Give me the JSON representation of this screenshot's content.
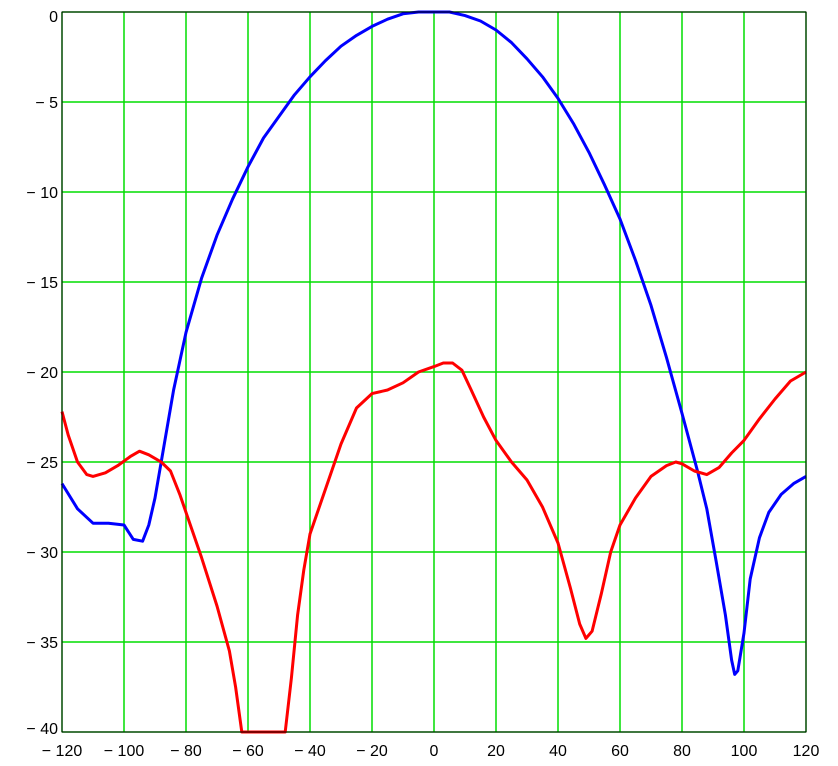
{
  "chart_data": {
    "type": "line",
    "title": "",
    "xlabel": "",
    "ylabel": "",
    "xlim": [
      -120,
      120
    ],
    "ylim": [
      -40,
      0
    ],
    "grid": true,
    "grid_color": "#00dd00",
    "x_ticks": [
      -120,
      -100,
      -80,
      -60,
      -40,
      -20,
      0,
      20,
      40,
      60,
      80,
      100,
      120
    ],
    "x_tick_labels": [
      "− 120",
      "− 100",
      "− 80",
      "− 60",
      "− 40",
      "− 20",
      "0",
      "20",
      "40",
      "60",
      "80",
      "100",
      "120"
    ],
    "y_ticks": [
      0,
      -5,
      -10,
      -15,
      -20,
      -25,
      -30,
      -35,
      -40
    ],
    "y_tick_labels": [
      "0",
      "− 5",
      "− 10",
      "− 15",
      "− 20",
      "− 25",
      "− 30",
      "− 35",
      "− 40"
    ],
    "series": [
      {
        "color": "#0000ff",
        "points": [
          [
            -120,
            -26.2
          ],
          [
            -115,
            -27.6
          ],
          [
            -110,
            -28.4
          ],
          [
            -105,
            -28.4
          ],
          [
            -100,
            -28.5
          ],
          [
            -97,
            -29.3
          ],
          [
            -94,
            -29.4
          ],
          [
            -92,
            -28.5
          ],
          [
            -90,
            -27.0
          ],
          [
            -88,
            -25.0
          ],
          [
            -86,
            -23.0
          ],
          [
            -84,
            -21.0
          ],
          [
            -80,
            -17.8
          ],
          [
            -75,
            -14.8
          ],
          [
            -70,
            -12.4
          ],
          [
            -65,
            -10.4
          ],
          [
            -60,
            -8.6
          ],
          [
            -55,
            -7.0
          ],
          [
            -50,
            -5.8
          ],
          [
            -45,
            -4.6
          ],
          [
            -40,
            -3.6
          ],
          [
            -35,
            -2.7
          ],
          [
            -30,
            -1.9
          ],
          [
            -25,
            -1.3
          ],
          [
            -20,
            -0.8
          ],
          [
            -15,
            -0.4
          ],
          [
            -10,
            -0.1
          ],
          [
            -5,
            0
          ],
          [
            0,
            0
          ],
          [
            5,
            0
          ],
          [
            10,
            -0.2
          ],
          [
            15,
            -0.5
          ],
          [
            20,
            -1.0
          ],
          [
            25,
            -1.7
          ],
          [
            30,
            -2.6
          ],
          [
            35,
            -3.6
          ],
          [
            40,
            -4.8
          ],
          [
            45,
            -6.2
          ],
          [
            50,
            -7.8
          ],
          [
            55,
            -9.6
          ],
          [
            60,
            -11.5
          ],
          [
            65,
            -13.8
          ],
          [
            70,
            -16.3
          ],
          [
            75,
            -19.2
          ],
          [
            80,
            -22.3
          ],
          [
            85,
            -25.5
          ],
          [
            88,
            -27.6
          ],
          [
            91,
            -30.5
          ],
          [
            94,
            -33.5
          ],
          [
            96,
            -36.0
          ],
          [
            97,
            -36.8
          ],
          [
            98,
            -36.6
          ],
          [
            100,
            -34.5
          ],
          [
            102,
            -31.5
          ],
          [
            105,
            -29.2
          ],
          [
            108,
            -27.8
          ],
          [
            112,
            -26.8
          ],
          [
            116,
            -26.2
          ],
          [
            120,
            -25.8
          ]
        ]
      },
      {
        "color": "#ff0000",
        "points": [
          [
            -120,
            -22.2
          ],
          [
            -118,
            -23.5
          ],
          [
            -115,
            -25.0
          ],
          [
            -112,
            -25.7
          ],
          [
            -110,
            -25.8
          ],
          [
            -106,
            -25.6
          ],
          [
            -102,
            -25.2
          ],
          [
            -98,
            -24.7
          ],
          [
            -95,
            -24.4
          ],
          [
            -92,
            -24.6
          ],
          [
            -88,
            -25.0
          ],
          [
            -85,
            -25.5
          ],
          [
            -82,
            -26.8
          ],
          [
            -78,
            -28.8
          ],
          [
            -75,
            -30.3
          ],
          [
            -70,
            -33.0
          ],
          [
            -66,
            -35.5
          ],
          [
            -64,
            -37.5
          ],
          [
            -62,
            -40
          ],
          [
            -48,
            -40
          ],
          [
            -46,
            -37.0
          ],
          [
            -44,
            -33.5
          ],
          [
            -42,
            -31.0
          ],
          [
            -40,
            -29.0
          ],
          [
            -35,
            -26.5
          ],
          [
            -30,
            -24.0
          ],
          [
            -25,
            -22.0
          ],
          [
            -20,
            -21.2
          ],
          [
            -15,
            -21.0
          ],
          [
            -10,
            -20.6
          ],
          [
            -5,
            -20.0
          ],
          [
            0,
            -19.7
          ],
          [
            3,
            -19.5
          ],
          [
            6,
            -19.5
          ],
          [
            9,
            -19.9
          ],
          [
            12,
            -21.0
          ],
          [
            16,
            -22.5
          ],
          [
            20,
            -23.8
          ],
          [
            25,
            -25.0
          ],
          [
            30,
            -26.0
          ],
          [
            35,
            -27.5
          ],
          [
            40,
            -29.5
          ],
          [
            44,
            -32.0
          ],
          [
            47,
            -34.0
          ],
          [
            49,
            -34.8
          ],
          [
            51,
            -34.4
          ],
          [
            54,
            -32.3
          ],
          [
            57,
            -30.0
          ],
          [
            60,
            -28.5
          ],
          [
            65,
            -27.0
          ],
          [
            70,
            -25.8
          ],
          [
            75,
            -25.2
          ],
          [
            78,
            -25.0
          ],
          [
            80,
            -25.1
          ],
          [
            84,
            -25.5
          ],
          [
            88,
            -25.7
          ],
          [
            92,
            -25.3
          ],
          [
            96,
            -24.5
          ],
          [
            100,
            -23.8
          ],
          [
            105,
            -22.6
          ],
          [
            110,
            -21.5
          ],
          [
            115,
            -20.5
          ],
          [
            120,
            -20.0
          ]
        ]
      }
    ]
  }
}
